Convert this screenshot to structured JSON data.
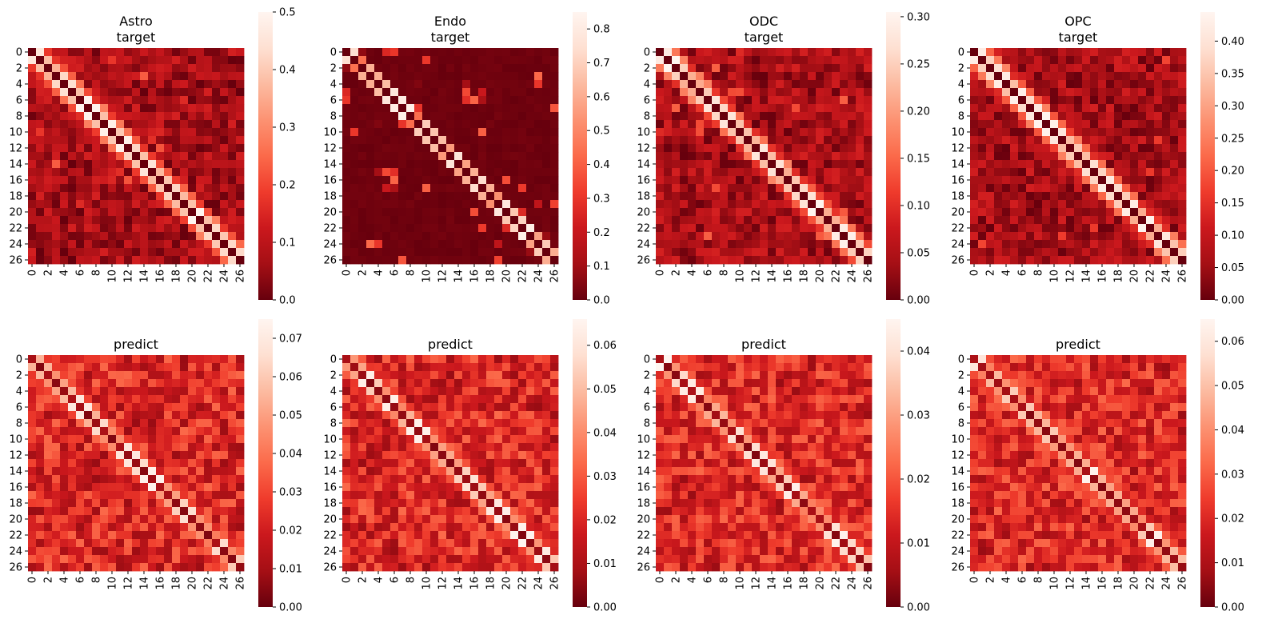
{
  "figure": {
    "heatmap_size": 27,
    "tick_labels": [
      "0",
      "2",
      "4",
      "6",
      "8",
      "10",
      "12",
      "14",
      "16",
      "18",
      "20",
      "22",
      "24",
      "26"
    ],
    "colormap": [
      "#67000d",
      "#a50f15",
      "#cb181d",
      "#ef3b2c",
      "#fb6a4a",
      "#fc9272",
      "#fcbba1",
      "#fee0d2",
      "#fff5f0"
    ]
  },
  "chart_data": [
    {
      "type": "heatmap",
      "title": [
        "Astro",
        "target"
      ],
      "colorbar_range": [
        0,
        0.5
      ],
      "colorbar_ticks": [
        "0.0",
        "0.1",
        "0.2",
        "0.3",
        "0.4",
        "0.5"
      ],
      "colorbar_tick_values": [
        0,
        0.1,
        0.2,
        0.3,
        0.4,
        0.5
      ],
      "description": "27x27 correlation matrix, strong diagonal, bright off-diagonal band"
    },
    {
      "type": "heatmap",
      "title": [
        "Endo",
        "target"
      ],
      "colorbar_range": [
        0,
        0.85
      ],
      "colorbar_ticks": [
        "0.0",
        "0.1",
        "0.2",
        "0.3",
        "0.4",
        "0.5",
        "0.6",
        "0.7",
        "0.8"
      ],
      "colorbar_tick_values": [
        0,
        0.1,
        0.2,
        0.3,
        0.4,
        0.5,
        0.6,
        0.7,
        0.8
      ],
      "description": "27x27 sparse matrix, mostly dark, diagonal visible"
    },
    {
      "type": "heatmap",
      "title": [
        "ODC",
        "target"
      ],
      "colorbar_range": [
        0,
        0.305
      ],
      "colorbar_ticks": [
        "0.00",
        "0.05",
        "0.10",
        "0.15",
        "0.20",
        "0.25",
        "0.30"
      ],
      "colorbar_tick_values": [
        0,
        0.05,
        0.1,
        0.15,
        0.2,
        0.25,
        0.3
      ],
      "description": "27x27 matrix, strong diagonal"
    },
    {
      "type": "heatmap",
      "title": [
        "OPC",
        "target"
      ],
      "colorbar_range": [
        0,
        0.445
      ],
      "colorbar_ticks": [
        "0.00",
        "0.05",
        "0.10",
        "0.15",
        "0.20",
        "0.25",
        "0.30",
        "0.35",
        "0.40"
      ],
      "colorbar_tick_values": [
        0,
        0.05,
        0.1,
        0.15,
        0.2,
        0.25,
        0.3,
        0.35,
        0.4
      ],
      "description": "27x27 matrix, strong diagonal"
    },
    {
      "type": "heatmap",
      "title": [
        "predict"
      ],
      "colorbar_range": [
        0,
        0.075
      ],
      "colorbar_ticks": [
        "0.00",
        "0.01",
        "0.02",
        "0.03",
        "0.04",
        "0.05",
        "0.06",
        "0.07"
      ],
      "colorbar_tick_values": [
        0,
        0.01,
        0.02,
        0.03,
        0.04,
        0.05,
        0.06,
        0.07
      ],
      "description": "27x27 predicted matrix, diagonal band"
    },
    {
      "type": "heatmap",
      "title": [
        "predict"
      ],
      "colorbar_range": [
        0,
        0.066
      ],
      "colorbar_ticks": [
        "0.00",
        "0.01",
        "0.02",
        "0.03",
        "0.04",
        "0.05",
        "0.06"
      ],
      "colorbar_tick_values": [
        0,
        0.01,
        0.02,
        0.03,
        0.04,
        0.05,
        0.06
      ],
      "description": "27x27 predicted matrix, diagonal band"
    },
    {
      "type": "heatmap",
      "title": [
        "predict"
      ],
      "colorbar_range": [
        0,
        0.045
      ],
      "colorbar_ticks": [
        "0.00",
        "0.01",
        "0.02",
        "0.03",
        "0.04"
      ],
      "colorbar_tick_values": [
        0,
        0.01,
        0.02,
        0.03,
        0.04
      ],
      "description": "27x27 predicted matrix, diagonal band"
    },
    {
      "type": "heatmap",
      "title": [
        "predict"
      ],
      "colorbar_range": [
        0,
        0.065
      ],
      "colorbar_ticks": [
        "0.00",
        "0.01",
        "0.02",
        "0.03",
        "0.04",
        "0.05",
        "0.06"
      ],
      "colorbar_tick_values": [
        0,
        0.01,
        0.02,
        0.03,
        0.04,
        0.05,
        0.06
      ],
      "description": "27x27 predicted matrix, diagonal band"
    }
  ]
}
